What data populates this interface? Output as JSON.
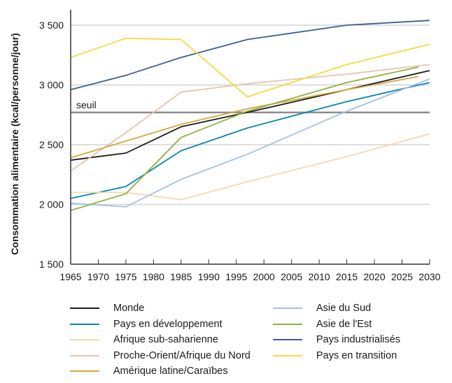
{
  "chart_data": {
    "type": "line",
    "title": "",
    "xlabel": "",
    "ylabel": "Consommation alimentaire (kcal/personne/jour)",
    "xlim": [
      1965,
      2030
    ],
    "ylim": [
      1500,
      3600
    ],
    "x_ticks": [
      1965,
      1970,
      1975,
      1980,
      1985,
      1990,
      1995,
      2000,
      2005,
      2010,
      2015,
      2020,
      2025,
      2030
    ],
    "x_tick_labels": [
      "1965",
      "1970",
      "1975",
      "1980",
      "1985",
      "1990",
      "1995",
      "2000",
      "2005",
      "2010",
      "2015",
      "2020",
      "2025",
      "2030"
    ],
    "y_ticks": [
      1500,
      2000,
      2500,
      3000,
      3500
    ],
    "y_tick_labels": [
      "1 500",
      "2 000",
      "2 500",
      "3 000",
      "3 500"
    ],
    "grid": "horizontal",
    "threshold": {
      "label": "seuil",
      "value": 2770,
      "color": "#8c8c8c"
    },
    "legend_position": "bottom",
    "series": [
      {
        "name": "Monde",
        "color": "#1a1a1a",
        "x": [
          1965,
          1975,
          1985,
          1997,
          2015,
          2030
        ],
        "values": [
          2370,
          2430,
          2650,
          2770,
          2960,
          3120
        ]
      },
      {
        "name": "Pays en développement",
        "color": "#0a86ad",
        "x": [
          1965,
          1975,
          1985,
          1997,
          2015,
          2030
        ],
        "values": [
          2050,
          2150,
          2450,
          2640,
          2860,
          3020
        ]
      },
      {
        "name": "Afrique sub-saharienne",
        "color": "#f2d9b3",
        "x": [
          1965,
          1975,
          1985,
          1997,
          2015,
          2030
        ],
        "values": [
          2100,
          2100,
          2040,
          2190,
          2400,
          2590
        ]
      },
      {
        "name": "Proche-Orient/Afrique du Nord",
        "color": "#e9c3ad",
        "x": [
          1965,
          1975,
          1985,
          1997,
          2015,
          2030
        ],
        "values": [
          2280,
          2600,
          2940,
          3010,
          3090,
          3170
        ]
      },
      {
        "name": "Amérique latine/Caraïbes",
        "color": "#d9a73a",
        "x": [
          1965,
          1975,
          1985,
          1997,
          2015,
          2028
        ],
        "values": [
          2390,
          2530,
          2670,
          2800,
          2960,
          3070
        ]
      },
      {
        "name": "Asie du Sud",
        "color": "#a7c0dc",
        "x": [
          1965,
          1975,
          1985,
          1997,
          2015,
          2030
        ],
        "values": [
          2010,
          1980,
          2210,
          2420,
          2780,
          3050
        ]
      },
      {
        "name": "Asie de l'Est",
        "color": "#8db33f",
        "x": [
          1965,
          1975,
          1985,
          1997,
          2015,
          2028
        ],
        "values": [
          1950,
          2090,
          2560,
          2780,
          3020,
          3150
        ]
      },
      {
        "name": "Pays industrialisés",
        "color": "#3b5f94",
        "x": [
          1965,
          1975,
          1985,
          1997,
          2015,
          2030
        ],
        "values": [
          2960,
          3080,
          3230,
          3380,
          3500,
          3540
        ]
      },
      {
        "name": "Pays en transition",
        "color": "#f5d93f",
        "x": [
          1965,
          1975,
          1985,
          1997,
          2015,
          2030
        ],
        "values": [
          3230,
          3390,
          3380,
          2900,
          3170,
          3340
        ]
      }
    ]
  }
}
